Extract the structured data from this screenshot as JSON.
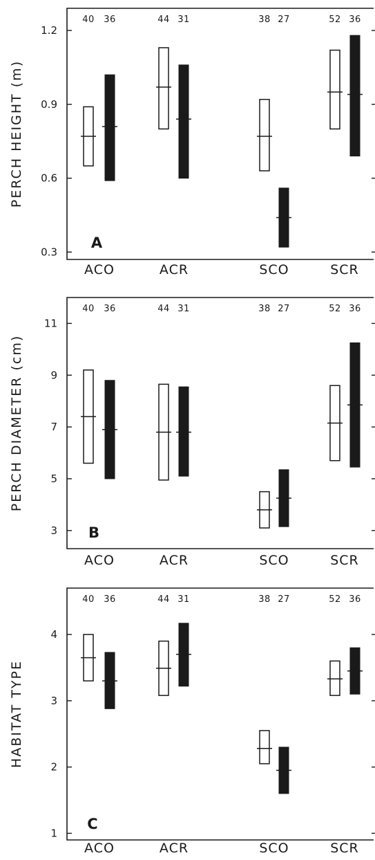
{
  "chart_data": [
    {
      "type": "bar",
      "panel_letter": "A",
      "ylabel": "PERCH HEIGHT (m)",
      "ylim": [
        0.27,
        1.29
      ],
      "yticks": [
        0.3,
        0.6,
        0.9,
        1.2
      ],
      "ytick_labels": [
        "0.3",
        "0.6",
        "0.9",
        "1.2"
      ],
      "categories": [
        "ACO",
        "ACR",
        "SCO",
        "SCR"
      ],
      "groups": [
        {
          "category": "ACO",
          "bars": [
            {
              "style": "open",
              "n": "40",
              "low": 0.65,
              "high": 0.89,
              "mean": 0.77
            },
            {
              "style": "filled",
              "n": "36",
              "low": 0.59,
              "high": 1.02,
              "mean": 0.81
            }
          ]
        },
        {
          "category": "ACR",
          "bars": [
            {
              "style": "open",
              "n": "44",
              "low": 0.8,
              "high": 1.13,
              "mean": 0.97
            },
            {
              "style": "filled",
              "n": "31",
              "low": 0.6,
              "high": 1.06,
              "mean": 0.84
            }
          ]
        },
        {
          "category": "SCO",
          "bars": [
            {
              "style": "open",
              "n": "38",
              "low": 0.63,
              "high": 0.92,
              "mean": 0.77
            },
            {
              "style": "filled",
              "n": "27",
              "low": 0.32,
              "high": 0.56,
              "mean": 0.44
            }
          ]
        },
        {
          "category": "SCR",
          "bars": [
            {
              "style": "open",
              "n": "52",
              "low": 0.8,
              "high": 1.12,
              "mean": 0.95
            },
            {
              "style": "filled",
              "n": "36",
              "low": 0.69,
              "high": 1.18,
              "mean": 0.94
            }
          ]
        }
      ]
    },
    {
      "type": "bar",
      "panel_letter": "B",
      "ylabel": "PERCH DIAMETER (cm)",
      "ylim": [
        2.3,
        12.0
      ],
      "yticks": [
        3,
        5,
        7,
        9,
        11
      ],
      "ytick_labels": [
        "3",
        "5",
        "7",
        "9",
        "11"
      ],
      "categories": [
        "ACO",
        "ACR",
        "SCO",
        "SCR"
      ],
      "groups": [
        {
          "category": "ACO",
          "bars": [
            {
              "style": "open",
              "n": "40",
              "low": 5.6,
              "high": 9.2,
              "mean": 7.4
            },
            {
              "style": "filled",
              "n": "36",
              "low": 5.0,
              "high": 8.8,
              "mean": 6.9
            }
          ]
        },
        {
          "category": "ACR",
          "bars": [
            {
              "style": "open",
              "n": "44",
              "low": 4.95,
              "high": 8.65,
              "mean": 6.8
            },
            {
              "style": "filled",
              "n": "31",
              "low": 5.1,
              "high": 8.55,
              "mean": 6.8
            }
          ]
        },
        {
          "category": "SCO",
          "bars": [
            {
              "style": "open",
              "n": "38",
              "low": 3.1,
              "high": 4.5,
              "mean": 3.8
            },
            {
              "style": "filled",
              "n": "27",
              "low": 3.15,
              "high": 5.35,
              "mean": 4.25
            }
          ]
        },
        {
          "category": "SCR",
          "bars": [
            {
              "style": "open",
              "n": "52",
              "low": 5.7,
              "high": 8.6,
              "mean": 7.15
            },
            {
              "style": "filled",
              "n": "36",
              "low": 5.45,
              "high": 10.25,
              "mean": 7.85
            }
          ]
        }
      ]
    },
    {
      "type": "bar",
      "panel_letter": "C",
      "ylabel": "HABITAT TYPE",
      "ylim": [
        0.9,
        4.7
      ],
      "yticks": [
        1,
        2,
        3,
        4
      ],
      "ytick_labels": [
        "1",
        "2",
        "3",
        "4"
      ],
      "categories": [
        "ACO",
        "ACR",
        "SCO",
        "SCR"
      ],
      "groups": [
        {
          "category": "ACO",
          "bars": [
            {
              "style": "open",
              "n": "40",
              "low": 3.3,
              "high": 4.0,
              "mean": 3.65
            },
            {
              "style": "filled",
              "n": "36",
              "low": 2.88,
              "high": 3.73,
              "mean": 3.3
            }
          ]
        },
        {
          "category": "ACR",
          "bars": [
            {
              "style": "open",
              "n": "44",
              "low": 3.08,
              "high": 3.9,
              "mean": 3.49
            },
            {
              "style": "filled",
              "n": "31",
              "low": 3.22,
              "high": 4.17,
              "mean": 3.7
            }
          ]
        },
        {
          "category": "SCO",
          "bars": [
            {
              "style": "open",
              "n": "38",
              "low": 2.05,
              "high": 2.55,
              "mean": 2.28
            },
            {
              "style": "filled",
              "n": "27",
              "low": 1.6,
              "high": 2.3,
              "mean": 1.95
            }
          ]
        },
        {
          "category": "SCR",
          "bars": [
            {
              "style": "open",
              "n": "52",
              "low": 3.08,
              "high": 3.6,
              "mean": 3.33
            },
            {
              "style": "filled",
              "n": "36",
              "low": 3.1,
              "high": 3.8,
              "mean": 3.45
            }
          ]
        }
      ]
    }
  ]
}
